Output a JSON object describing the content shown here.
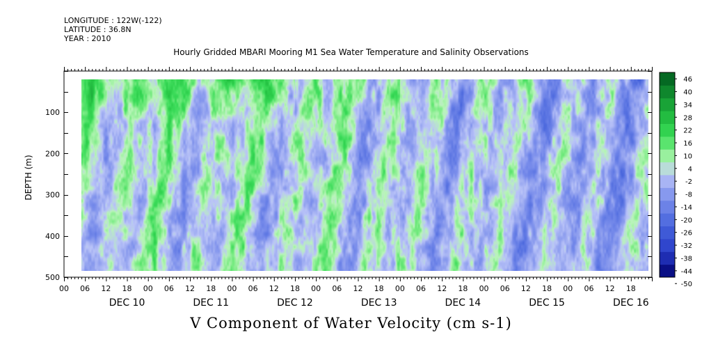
{
  "header": {
    "longitude": "LONGITUDE : 122W(-122)",
    "latitude": "LATITUDE : 36.8N",
    "year": "YEAR : 2010"
  },
  "chart_data": {
    "type": "heatmap",
    "title": "Hourly Gridded MBARI Mooring M1 Sea Water Temperature and Salinity Observations",
    "ylabel": "DEPTH (m)",
    "xlabel": "V Component of Water Velocity (cm s-1)",
    "ylim": [
      500,
      0
    ],
    "y_ticks": [
      100,
      200,
      300,
      400,
      500
    ],
    "y_tick_labels": [
      "100",
      "200",
      "300",
      "400",
      "500"
    ],
    "x_range_hours": [
      -6,
      162
    ],
    "x_hour_labels": [
      "00",
      "06",
      "12",
      "18",
      "00",
      "06",
      "12",
      "18",
      "00",
      "06",
      "12",
      "18",
      "00",
      "06",
      "12",
      "18",
      "00",
      "06",
      "12",
      "18",
      "00",
      "06",
      "12",
      "18",
      "00",
      "06",
      "12",
      "18"
    ],
    "x_day_labels": [
      "DEC 10",
      "DEC 11",
      "DEC 12",
      "DEC 13",
      "DEC 14",
      "DEC 15",
      "DEC 16"
    ],
    "data_extent": {
      "x_hours": [
        -1,
        161
      ],
      "depth_m": [
        20,
        485
      ]
    },
    "colorbar": {
      "levels": [
        -50,
        -44,
        -38,
        -32,
        -26,
        -20,
        -14,
        -8,
        -2,
        4,
        10,
        16,
        22,
        28,
        34,
        40,
        46
      ],
      "labels": [
        "46",
        "40",
        "34",
        "28",
        "22",
        "16",
        "10",
        "4",
        "-2",
        "-8",
        "-14",
        "-20",
        "-26",
        "-32",
        "-38",
        "-44",
        "-50"
      ],
      "colormap": "blue-white-green",
      "neg_end_color": "#00006e",
      "pos_end_color": "#005a1e"
    },
    "grid": false,
    "dominant_pattern": "alternating green (northward) and blue (southward) vertical bands; green strongest near surface on DEC 10 and DEC 12"
  }
}
